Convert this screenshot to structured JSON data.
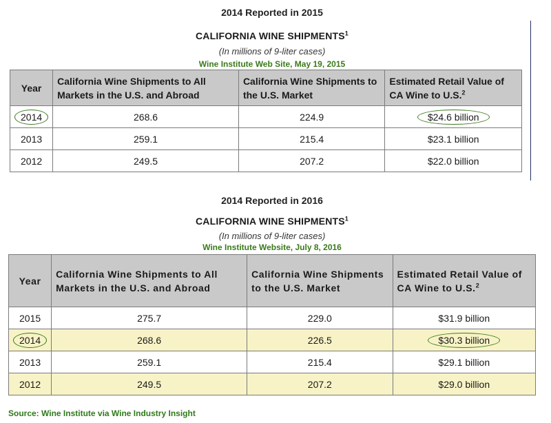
{
  "table1": {
    "report_label": "2014 Reported in 2015",
    "title": "CALIFORNIA WINE SHIPMENTS",
    "title_sup": "1",
    "subtitle": "(In millions of 9-liter cases)",
    "source": "Wine Institute Web Site, May 19, 2015",
    "headers": {
      "year": "Year",
      "col1": "California Wine Shipments to All Markets in the U.S. and Abroad",
      "col2": "California Wine Shipments to the U.S. Market",
      "col3": "Estimated Retail Value of CA Wine to U.S.",
      "col3_sup": "2"
    },
    "rows": [
      {
        "year": "2014",
        "all": "268.6",
        "us": "224.9",
        "value": "$24.6 billion"
      },
      {
        "year": "2013",
        "all": "259.1",
        "us": "215.4",
        "value": "$23.1 billion"
      },
      {
        "year": "2012",
        "all": "249.5",
        "us": "207.2",
        "value": "$22.0 billion"
      }
    ]
  },
  "table2": {
    "report_label": "2014 Reported in 2016",
    "title": "CALIFORNIA WINE SHIPMENTS",
    "title_sup": "1",
    "subtitle": "(In millions of 9-liter cases)",
    "source": "Wine Institute Website, July 8, 2016",
    "headers": {
      "year": "Year",
      "col1": "California Wine Shipments to All Markets in the U.S. and Abroad",
      "col2": "California Wine Shipments to the U.S. Market",
      "col3": "Estimated Retail Value of CA Wine to U.S.",
      "col3_sup": "2"
    },
    "rows": [
      {
        "year": "2015",
        "all": "275.7",
        "us": "229.0",
        "value": "$31.9 billion"
      },
      {
        "year": "2014",
        "all": "268.6",
        "us": "226.5",
        "value": "$30.3 billion"
      },
      {
        "year": "2013",
        "all": "259.1",
        "us": "215.4",
        "value": "$29.1 billion"
      },
      {
        "year": "2012",
        "all": "249.5",
        "us": "207.2",
        "value": "$29.0 billion"
      }
    ]
  },
  "footer": "Source: Wine Institute via Wine Industry Insight",
  "colors": {
    "header_gray": "#c9c9c9",
    "highlight_yellow": "#f7f3c6",
    "circle_green": "#3c7a1e",
    "source_green": "#3a7a1a"
  }
}
